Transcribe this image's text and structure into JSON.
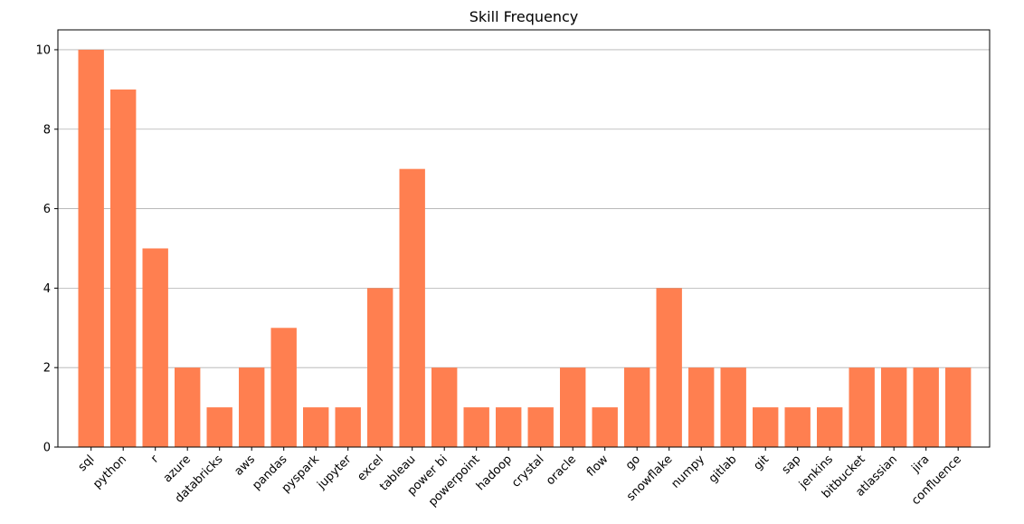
{
  "chart_data": {
    "type": "bar",
    "title": "Skill Frequency",
    "xlabel": "",
    "ylabel": "",
    "categories": [
      "sql",
      "python",
      "r",
      "azure",
      "databricks",
      "aws",
      "pandas",
      "pyspark",
      "jupyter",
      "excel",
      "tableau",
      "power bi",
      "powerpoint",
      "hadoop",
      "crystal",
      "oracle",
      "flow",
      "go",
      "snowflake",
      "numpy",
      "gitlab",
      "git",
      "sap",
      "jenkins",
      "bitbucket",
      "atlassian",
      "jira",
      "confluence"
    ],
    "values": [
      10,
      9,
      5,
      2,
      1,
      2,
      3,
      1,
      1,
      4,
      7,
      2,
      1,
      1,
      1,
      2,
      1,
      2,
      4,
      2,
      2,
      1,
      1,
      1,
      2,
      2,
      2,
      2
    ],
    "ylim": [
      0,
      10.5
    ],
    "yticks": [
      0,
      2,
      4,
      6,
      8,
      10
    ],
    "grid": "y",
    "bar_color": "#ff7f50",
    "grid_color": "#b0b0b0"
  }
}
